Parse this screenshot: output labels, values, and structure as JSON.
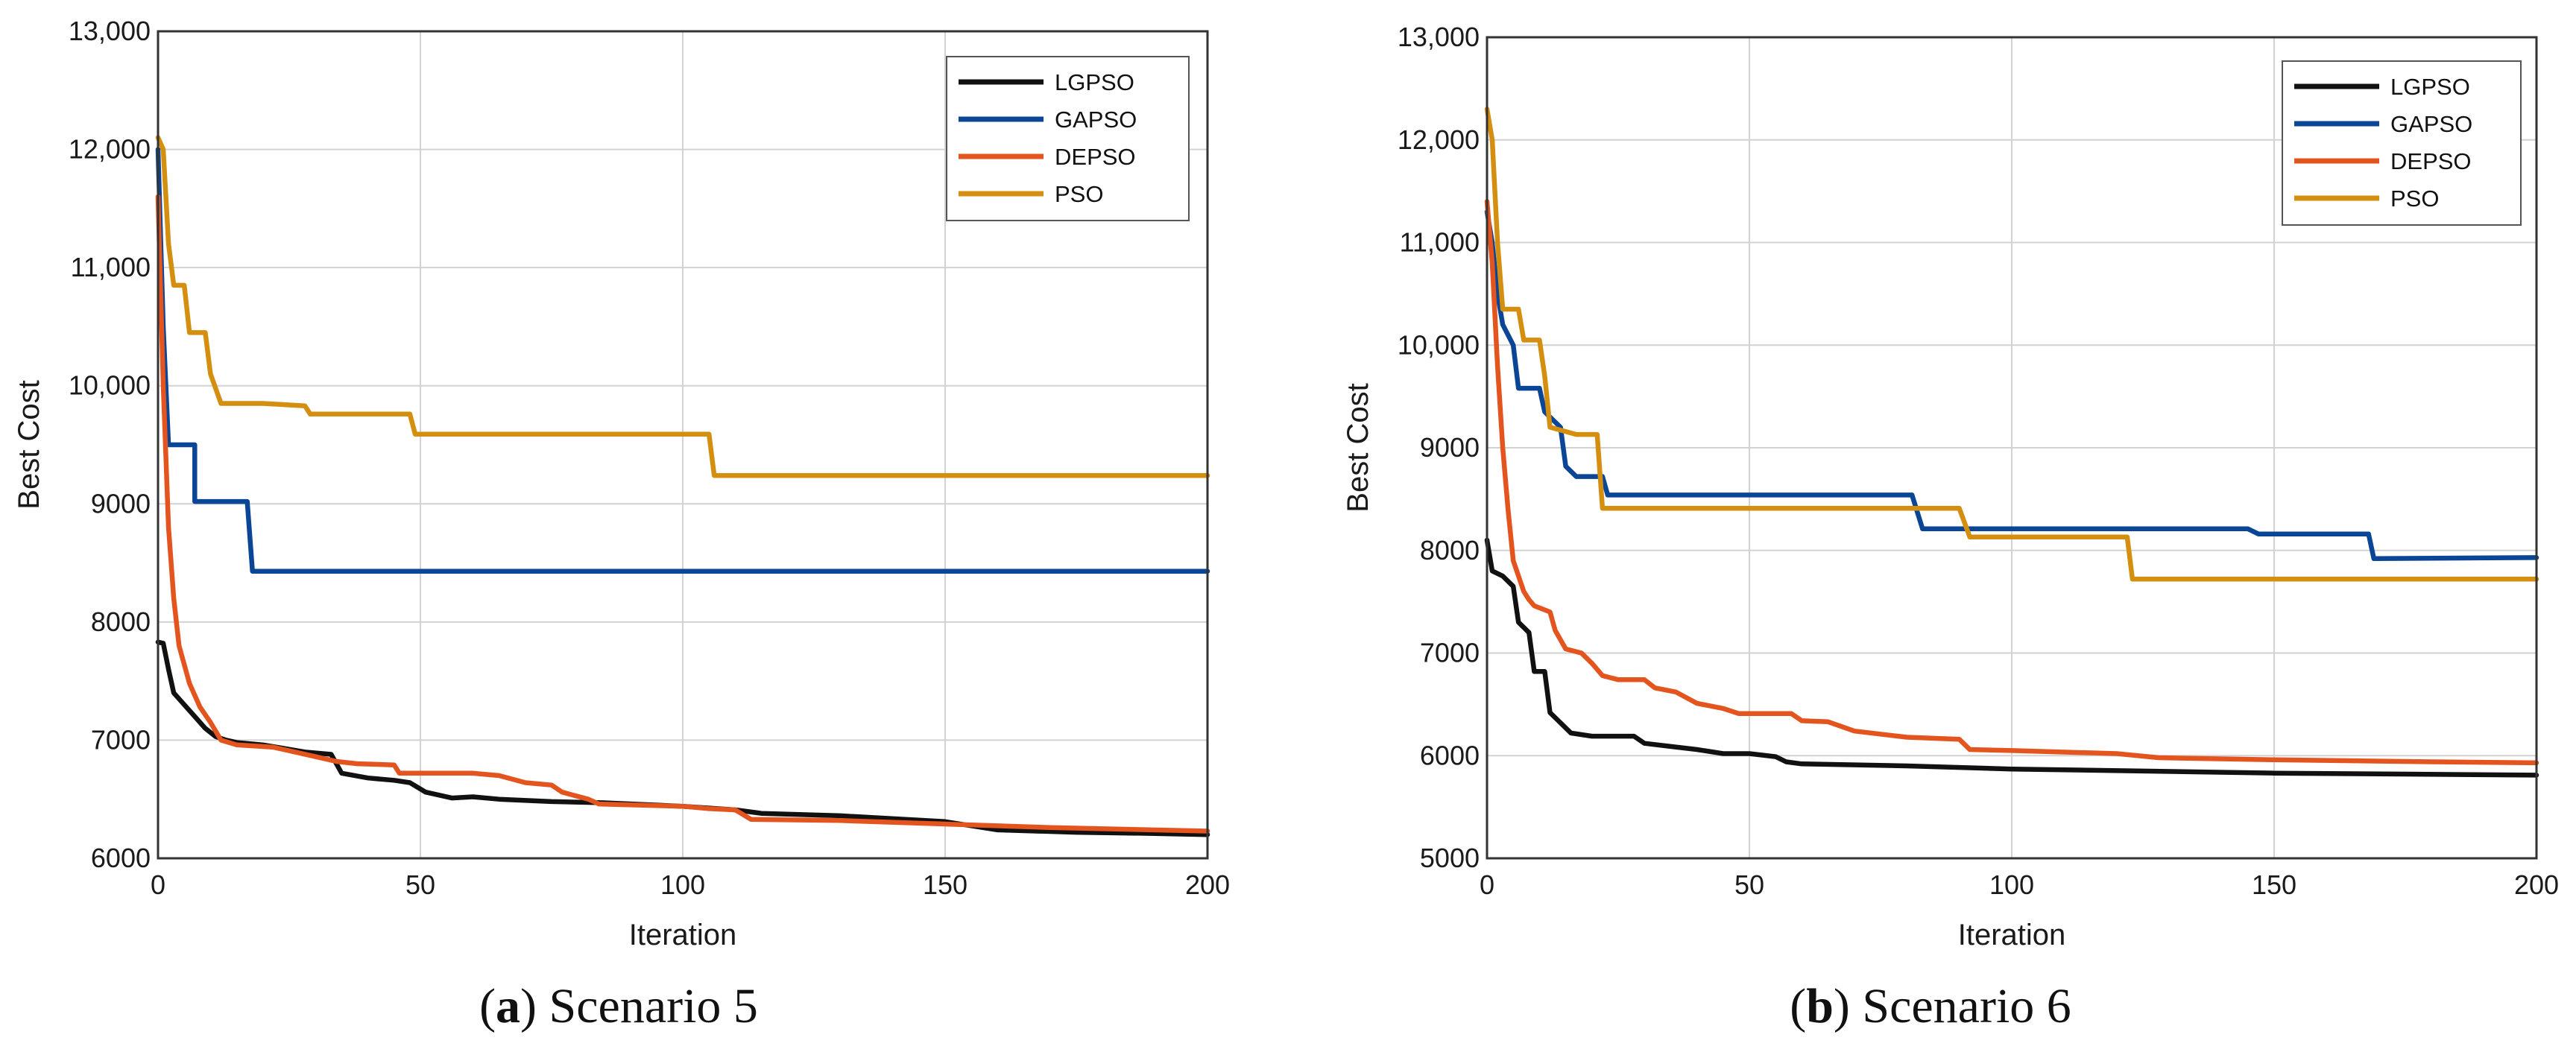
{
  "colors": {
    "LGPSO": "#111111",
    "GAPSO": "#0b4596",
    "DEPSO": "#e3541f",
    "PSO": "#d48f10"
  },
  "chart_data": [
    {
      "type": "line",
      "caption_letter": "a",
      "caption_rest": ") Scenario 5",
      "caption_paren": "(",
      "xlabel": "Iteration",
      "ylabel": "Best Cost",
      "xlim": [
        0,
        200
      ],
      "ylim": [
        6000,
        13000
      ],
      "xticks": [
        0,
        50,
        100,
        150,
        200
      ],
      "xtick_labels": [
        "0",
        "50",
        "100",
        "150",
        "200"
      ],
      "yticks": [
        6000,
        7000,
        8000,
        9000,
        10000,
        11000,
        12000,
        13000
      ],
      "ytick_labels": [
        "6000",
        "7000",
        "8000",
        "9000",
        "10,000",
        "11,000",
        "12,000",
        "13,000"
      ],
      "grid": true,
      "legend_position": "top-right",
      "series": [
        {
          "name": "LGPSO",
          "points": [
            [
              0,
              7830
            ],
            [
              1,
              7820
            ],
            [
              2,
              7600
            ],
            [
              3,
              7400
            ],
            [
              5,
              7300
            ],
            [
              7,
              7200
            ],
            [
              9,
              7100
            ],
            [
              11,
              7030
            ],
            [
              13,
              7000
            ],
            [
              15,
              6980
            ],
            [
              20,
              6960
            ],
            [
              28,
              6900
            ],
            [
              33,
              6880
            ],
            [
              35,
              6720
            ],
            [
              40,
              6680
            ],
            [
              45,
              6660
            ],
            [
              48,
              6640
            ],
            [
              51,
              6560
            ],
            [
              56,
              6510
            ],
            [
              60,
              6520
            ],
            [
              65,
              6500
            ],
            [
              75,
              6480
            ],
            [
              85,
              6470
            ],
            [
              100,
              6440
            ],
            [
              110,
              6410
            ],
            [
              115,
              6380
            ],
            [
              130,
              6360
            ],
            [
              150,
              6310
            ],
            [
              160,
              6240
            ],
            [
              175,
              6220
            ],
            [
              190,
              6210
            ],
            [
              200,
              6200
            ]
          ]
        },
        {
          "name": "GAPSO",
          "points": [
            [
              0,
              12000
            ],
            [
              1,
              10500
            ],
            [
              2,
              9500
            ],
            [
              7,
              9500
            ],
            [
              7,
              9020
            ],
            [
              17,
              9020
            ],
            [
              18,
              8430
            ],
            [
              200,
              8430
            ]
          ]
        },
        {
          "name": "DEPSO",
          "points": [
            [
              0,
              11600
            ],
            [
              1,
              10000
            ],
            [
              2,
              8800
            ],
            [
              3,
              8200
            ],
            [
              4,
              7800
            ],
            [
              6,
              7480
            ],
            [
              8,
              7280
            ],
            [
              10,
              7150
            ],
            [
              12,
              7000
            ],
            [
              15,
              6960
            ],
            [
              22,
              6940
            ],
            [
              30,
              6860
            ],
            [
              34,
              6820
            ],
            [
              38,
              6800
            ],
            [
              45,
              6790
            ],
            [
              46,
              6720
            ],
            [
              55,
              6720
            ],
            [
              60,
              6720
            ],
            [
              65,
              6700
            ],
            [
              70,
              6640
            ],
            [
              75,
              6620
            ],
            [
              77,
              6560
            ],
            [
              82,
              6500
            ],
            [
              84,
              6460
            ],
            [
              100,
              6440
            ],
            [
              105,
              6420
            ],
            [
              110,
              6410
            ],
            [
              113,
              6330
            ],
            [
              130,
              6320
            ],
            [
              150,
              6290
            ],
            [
              170,
              6260
            ],
            [
              200,
              6230
            ]
          ]
        },
        {
          "name": "PSO",
          "points": [
            [
              0,
              12100
            ],
            [
              1,
              12000
            ],
            [
              2,
              11200
            ],
            [
              3,
              10850
            ],
            [
              5,
              10850
            ],
            [
              6,
              10450
            ],
            [
              9,
              10450
            ],
            [
              10,
              10100
            ],
            [
              12,
              9850
            ],
            [
              20,
              9850
            ],
            [
              28,
              9830
            ],
            [
              29,
              9760
            ],
            [
              40,
              9760
            ],
            [
              48,
              9760
            ],
            [
              49,
              9590
            ],
            [
              105,
              9590
            ],
            [
              106,
              9240
            ],
            [
              200,
              9240
            ]
          ]
        }
      ]
    },
    {
      "type": "line",
      "caption_letter": "b",
      "caption_rest": ") Scenario 6",
      "caption_paren": "(",
      "xlabel": "Iteration",
      "ylabel": "Best Cost",
      "xlim": [
        0,
        200
      ],
      "ylim": [
        5000,
        13000
      ],
      "xticks": [
        0,
        50,
        100,
        150,
        200
      ],
      "xtick_labels": [
        "0",
        "50",
        "100",
        "150",
        "200"
      ],
      "yticks": [
        5000,
        6000,
        7000,
        8000,
        9000,
        10000,
        11000,
        12000,
        13000
      ],
      "ytick_labels": [
        "5000",
        "6000",
        "7000",
        "8000",
        "9000",
        "10,000",
        "11,000",
        "12,000",
        "13,000"
      ],
      "grid": true,
      "legend_position": "top-right",
      "series": [
        {
          "name": "LGPSO",
          "points": [
            [
              0,
              8100
            ],
            [
              1,
              7800
            ],
            [
              3,
              7750
            ],
            [
              5,
              7650
            ],
            [
              6,
              7300
            ],
            [
              8,
              7200
            ],
            [
              9,
              6820
            ],
            [
              11,
              6820
            ],
            [
              12,
              6420
            ],
            [
              14,
              6320
            ],
            [
              16,
              6220
            ],
            [
              20,
              6190
            ],
            [
              28,
              6190
            ],
            [
              30,
              6120
            ],
            [
              35,
              6090
            ],
            [
              40,
              6060
            ],
            [
              45,
              6020
            ],
            [
              50,
              6020
            ],
            [
              55,
              5990
            ],
            [
              57,
              5940
            ],
            [
              60,
              5920
            ],
            [
              80,
              5900
            ],
            [
              100,
              5870
            ],
            [
              125,
              5850
            ],
            [
              150,
              5830
            ],
            [
              175,
              5820
            ],
            [
              200,
              5810
            ]
          ]
        },
        {
          "name": "GAPSO",
          "points": [
            [
              0,
              11300
            ],
            [
              1,
              11000
            ],
            [
              2,
              10500
            ],
            [
              3,
              10200
            ],
            [
              5,
              10000
            ],
            [
              6,
              9580
            ],
            [
              10,
              9580
            ],
            [
              11,
              9350
            ],
            [
              14,
              9200
            ],
            [
              15,
              8820
            ],
            [
              17,
              8720
            ],
            [
              22,
              8720
            ],
            [
              23,
              8540
            ],
            [
              81,
              8540
            ],
            [
              83,
              8210
            ],
            [
              145,
              8210
            ],
            [
              147,
              8160
            ],
            [
              168,
              8160
            ],
            [
              169,
              7920
            ],
            [
              200,
              7930
            ]
          ]
        },
        {
          "name": "DEPSO",
          "points": [
            [
              0,
              11400
            ],
            [
              1,
              10800
            ],
            [
              2,
              9800
            ],
            [
              3,
              9000
            ],
            [
              4,
              8400
            ],
            [
              5,
              7900
            ],
            [
              7,
              7600
            ],
            [
              8,
              7520
            ],
            [
              9,
              7460
            ],
            [
              12,
              7400
            ],
            [
              13,
              7220
            ],
            [
              15,
              7040
            ],
            [
              18,
              7000
            ],
            [
              20,
              6900
            ],
            [
              22,
              6780
            ],
            [
              25,
              6740
            ],
            [
              30,
              6740
            ],
            [
              32,
              6660
            ],
            [
              36,
              6620
            ],
            [
              40,
              6510
            ],
            [
              45,
              6460
            ],
            [
              48,
              6410
            ],
            [
              58,
              6410
            ],
            [
              60,
              6340
            ],
            [
              65,
              6330
            ],
            [
              70,
              6240
            ],
            [
              80,
              6180
            ],
            [
              90,
              6160
            ],
            [
              92,
              6060
            ],
            [
              100,
              6050
            ],
            [
              120,
              6020
            ],
            [
              128,
              5980
            ],
            [
              150,
              5960
            ],
            [
              180,
              5940
            ],
            [
              200,
              5930
            ]
          ]
        },
        {
          "name": "PSO",
          "points": [
            [
              0,
              12300
            ],
            [
              1,
              12000
            ],
            [
              2,
              11000
            ],
            [
              3,
              10350
            ],
            [
              6,
              10350
            ],
            [
              7,
              10050
            ],
            [
              10,
              10050
            ],
            [
              11,
              9700
            ],
            [
              12,
              9200
            ],
            [
              17,
              9130
            ],
            [
              21,
              9130
            ],
            [
              22,
              8410
            ],
            [
              90,
              8410
            ],
            [
              92,
              8130
            ],
            [
              110,
              8130
            ],
            [
              122,
              8130
            ],
            [
              123,
              7720
            ],
            [
              150,
              7720
            ],
            [
              200,
              7720
            ]
          ]
        }
      ]
    }
  ]
}
